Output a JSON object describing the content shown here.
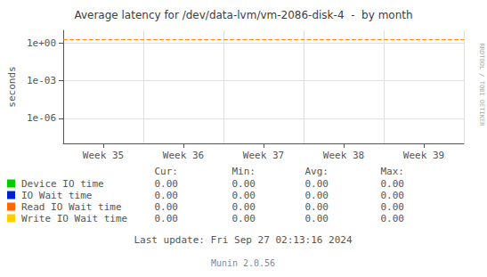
{
  "chart_data": {
    "type": "line",
    "title": "Average latency for /dev/data-lvm/vm-2086-disk-4  -  by month",
    "y_label": "seconds",
    "categories": [
      "Week 35",
      "Week 36",
      "Week 37",
      "Week 38",
      "Week 39"
    ],
    "log": "y",
    "ylim": [
      1e-08,
      10
    ],
    "yticks": [
      {
        "value": 1e-06,
        "label": "1e-06"
      },
      {
        "value": 0.001,
        "label": "1e-03"
      },
      {
        "value": 1,
        "label": "1e+00"
      }
    ],
    "grid": true,
    "hlines": [
      {
        "y": 2.0,
        "color": "#ff8c00",
        "line_style": "dashed"
      }
    ],
    "stats_headers": [
      "Cur:",
      "Min:",
      "Avg:",
      "Max:"
    ],
    "series": [
      {
        "name": "Device IO time",
        "color": "#00cc00",
        "stats": [
          {
            "value": 0,
            "label": "0.00"
          },
          {
            "value": 0,
            "label": "0.00"
          },
          {
            "value": 0,
            "label": "0.00"
          },
          {
            "value": 0,
            "label": "0.00"
          }
        ]
      },
      {
        "name": "IO Wait time",
        "color": "#0022cc",
        "stats": [
          {
            "value": 0,
            "label": "0.00"
          },
          {
            "value": 0,
            "label": "0.00"
          },
          {
            "value": 0,
            "label": "0.00"
          },
          {
            "value": 0,
            "label": "0.00"
          }
        ]
      },
      {
        "name": "Read IO Wait time",
        "color": "#ff6600",
        "stats": [
          {
            "value": 0,
            "label": "0.00"
          },
          {
            "value": 0,
            "label": "0.00"
          },
          {
            "value": 0,
            "label": "0.00"
          },
          {
            "value": 0,
            "label": "0.00"
          }
        ]
      },
      {
        "name": "Write IO Wait time",
        "color": "#ffcc00",
        "stats": [
          {
            "value": 0,
            "label": "0.00"
          },
          {
            "value": 0,
            "label": "0.00"
          },
          {
            "value": 0,
            "label": "0.00"
          },
          {
            "value": 0,
            "label": "0.00"
          }
        ]
      }
    ],
    "annotations": [
      "RRDTOOL / TOBI OETIKER",
      "Last update: Fri Sep 27 02:13:16 2024",
      "Munin 2.0.56"
    ]
  }
}
